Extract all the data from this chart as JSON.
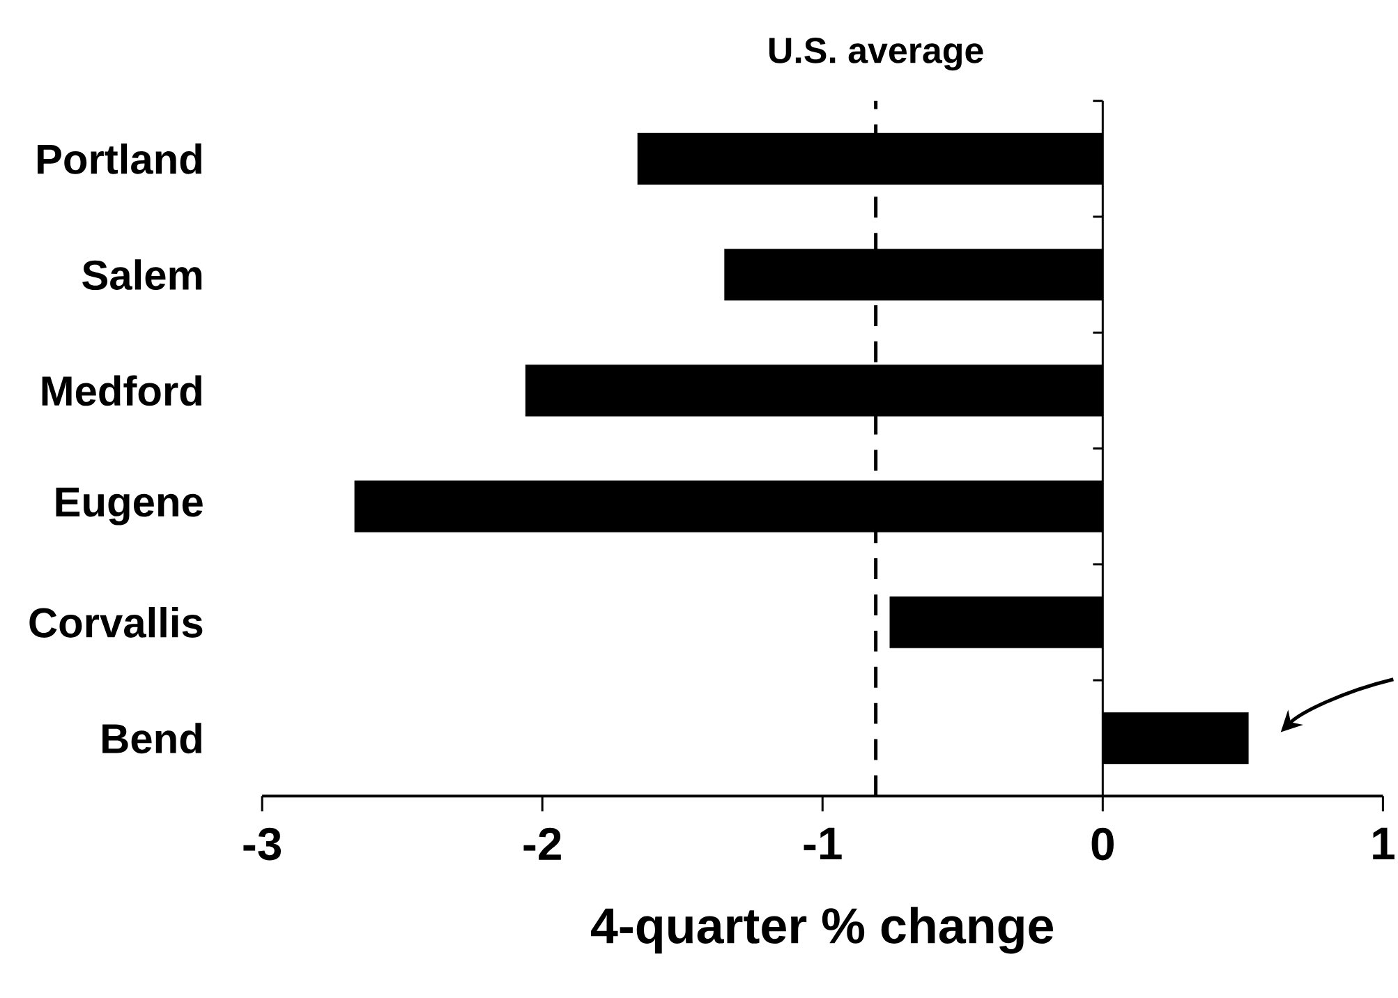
{
  "chart_data": {
    "type": "bar",
    "orientation": "horizontal",
    "categories": [
      "Portland",
      "Salem",
      "Medford",
      "Eugene",
      "Corvallis",
      "Bend"
    ],
    "values": [
      -1.66,
      -1.35,
      -2.06,
      -2.67,
      -0.76,
      0.52
    ],
    "color": "#000000",
    "xlim": [
      -3,
      1
    ],
    "xticks": [
      -3,
      -2,
      -1,
      0,
      1
    ],
    "xlabel": "4-quarter % change",
    "ref_lines": [
      {
        "axis": "x",
        "value": -0.81,
        "label": "U.S. average",
        "line_style": "dashed",
        "color": "#000000"
      }
    ]
  }
}
